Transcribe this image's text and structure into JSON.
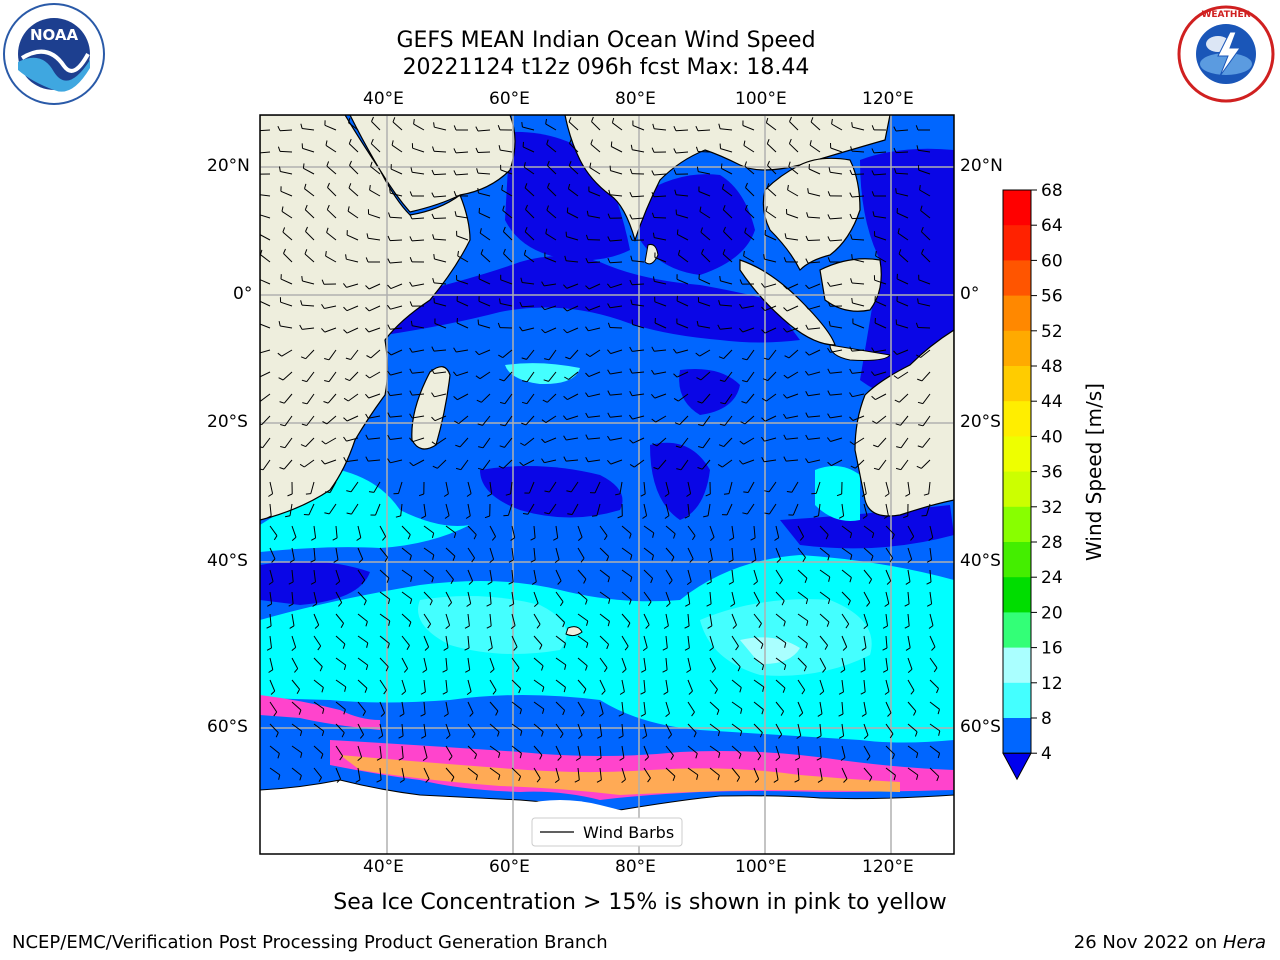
{
  "header": {
    "title_line1": "GEFS MEAN Indian Ocean Wind Speed",
    "title_line2": "20221124 t12z 096h fcst   Max: 18.44"
  },
  "logos": {
    "left": "noaa-logo",
    "right": "national-weather-service-logo"
  },
  "map": {
    "lon_ticks": [
      "40°E",
      "60°E",
      "80°E",
      "100°E",
      "120°E"
    ],
    "lat_ticks": [
      "20°N",
      "0°",
      "20°S",
      "40°S",
      "60°S"
    ],
    "legend_label": "Wind Barbs",
    "colors": {
      "land": "#eeeedd",
      "ocean_4_8": "#0066ff",
      "ocean_lt4": "#0a06e6",
      "ocean_8_12": "#00ffff",
      "ocean_12_16": "#44ffff",
      "ocean_16_20": "#aaffff",
      "ice_pink": "#ff44cc",
      "ice_orange": "#ffaa55",
      "ice_white": "#ffffff"
    }
  },
  "colorbar": {
    "label": "Wind Speed [m/s]",
    "ticks": [
      "68",
      "64",
      "60",
      "56",
      "52",
      "48",
      "44",
      "40",
      "36",
      "32",
      "28",
      "24",
      "20",
      "16",
      "12",
      "8",
      "4"
    ],
    "colors": [
      "#ff0000",
      "#ff2200",
      "#ff5500",
      "#ff8800",
      "#ffaa00",
      "#ffcc00",
      "#ffee00",
      "#eeff00",
      "#ccff00",
      "#88ff00",
      "#44ee00",
      "#00dd00",
      "#33ff77",
      "#aaffff",
      "#44ffff",
      "#00ffff",
      "#0066ff"
    ],
    "under_color": "#0000ee"
  },
  "caption": "Sea Ice Concentration > 15% is shown in pink to yellow",
  "footer": {
    "left": "NCEP/EMC/Verification Post Processing Product Generation Branch",
    "right_date": "26 Nov 2022 on ",
    "right_host": "Hera"
  }
}
